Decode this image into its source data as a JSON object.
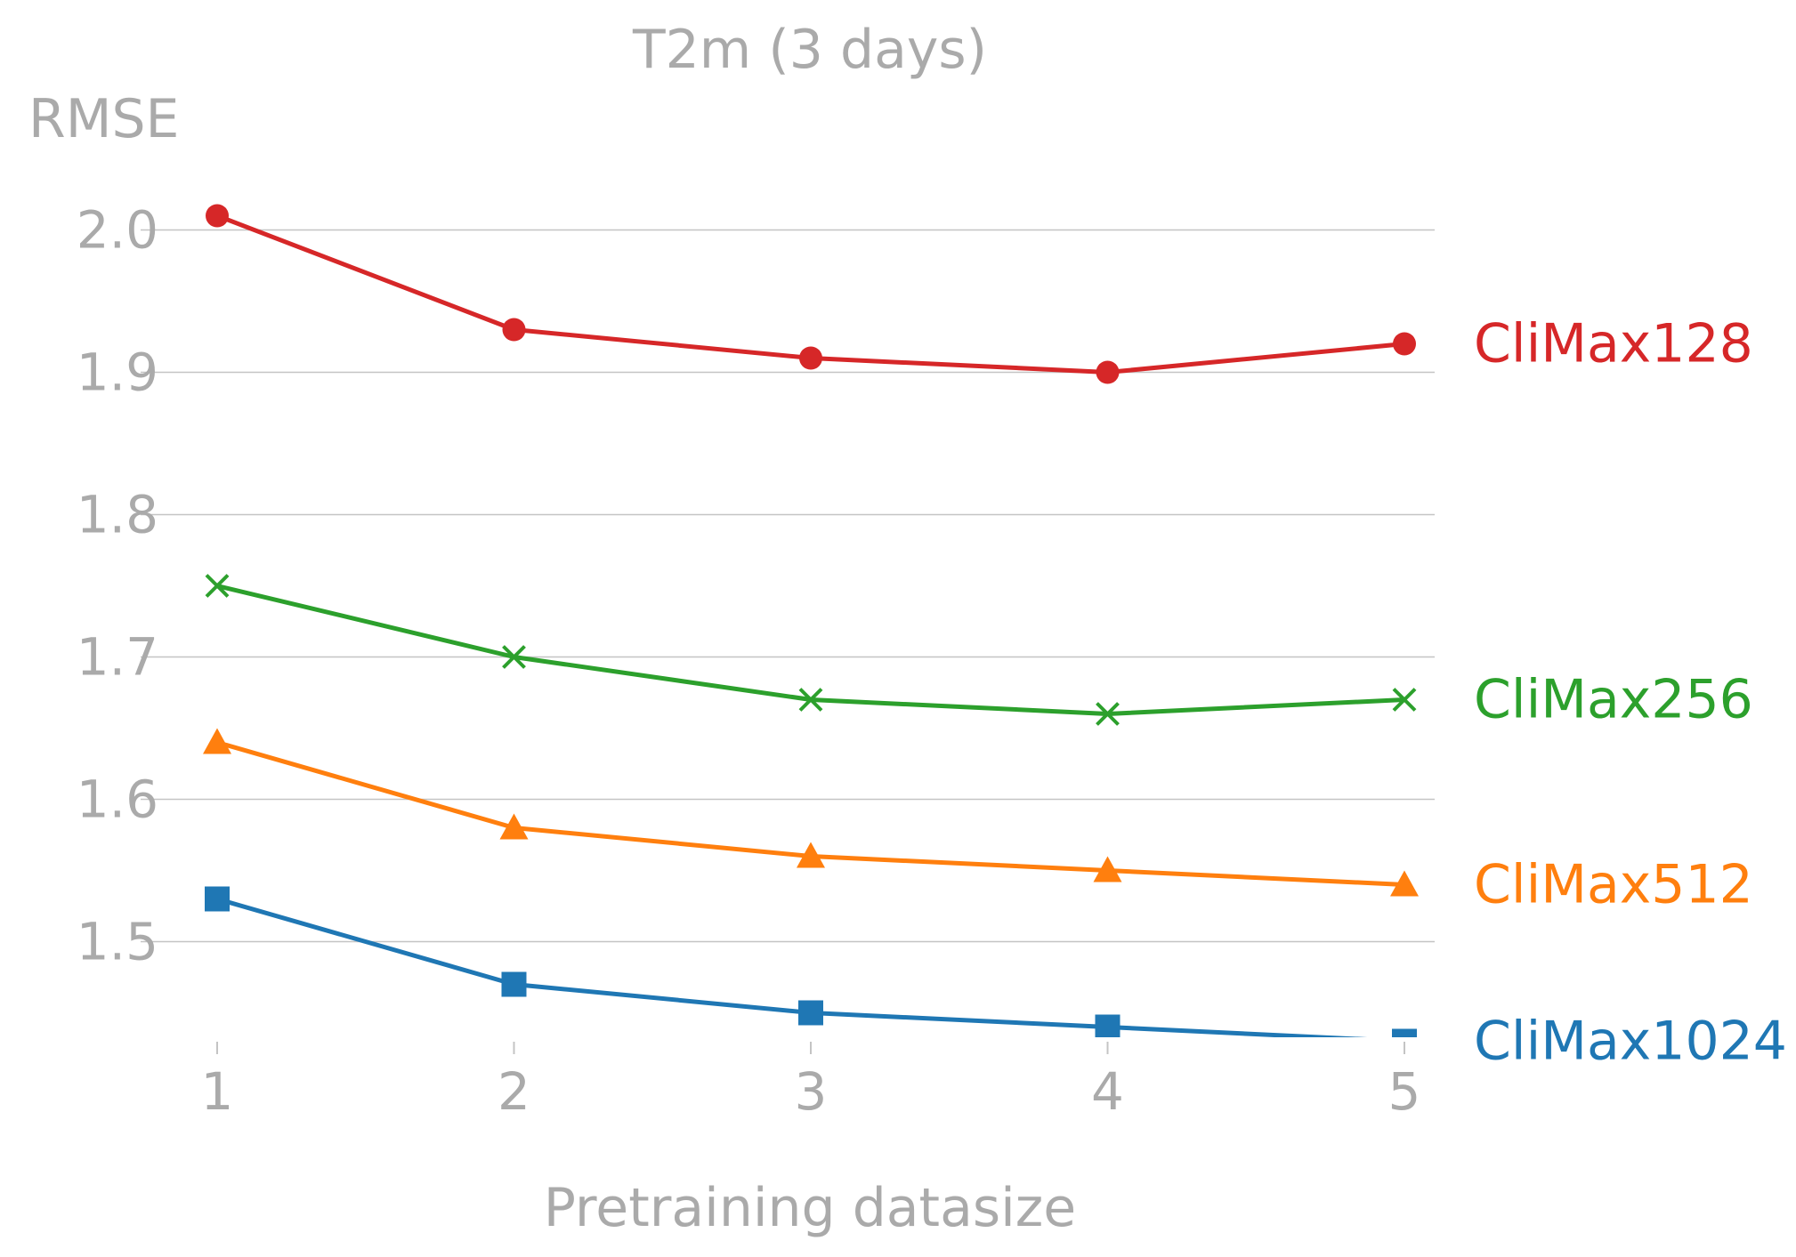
{
  "chart_data": {
    "type": "line",
    "title": "T2m (3 days)",
    "xlabel": "Pretraining datasize",
    "ylabel": "RMSE",
    "x": [
      1,
      2,
      3,
      4,
      5
    ],
    "x_tick_labels": [
      "1",
      "2",
      "3",
      "4",
      "5"
    ],
    "y_ticks": [
      1.5,
      1.6,
      1.7,
      1.8,
      1.9,
      2.0
    ],
    "y_tick_labels": [
      "1.5",
      "1.6",
      "1.7",
      "1.8",
      "1.9",
      "2.0"
    ],
    "xlim": [
      0.9,
      5.1
    ],
    "ylim": [
      1.43,
      2.01
    ],
    "grid": "horizontal",
    "legend": "inline labels at right end of each line",
    "series": [
      {
        "name": "CliMax128",
        "color": "#d62728",
        "marker": "circle",
        "values": [
          2.01,
          1.93,
          1.91,
          1.9,
          1.92
        ]
      },
      {
        "name": "CliMax256",
        "color": "#2ca02c",
        "marker": "x",
        "values": [
          1.75,
          1.7,
          1.67,
          1.66,
          1.67
        ]
      },
      {
        "name": "CliMax512",
        "color": "#ff7f0e",
        "marker": "triangle",
        "values": [
          1.64,
          1.58,
          1.56,
          1.55,
          1.54
        ]
      },
      {
        "name": "CliMax1024",
        "color": "#1f77b4",
        "marker": "square",
        "values": [
          1.53,
          1.47,
          1.45,
          1.44,
          1.43
        ]
      }
    ]
  }
}
